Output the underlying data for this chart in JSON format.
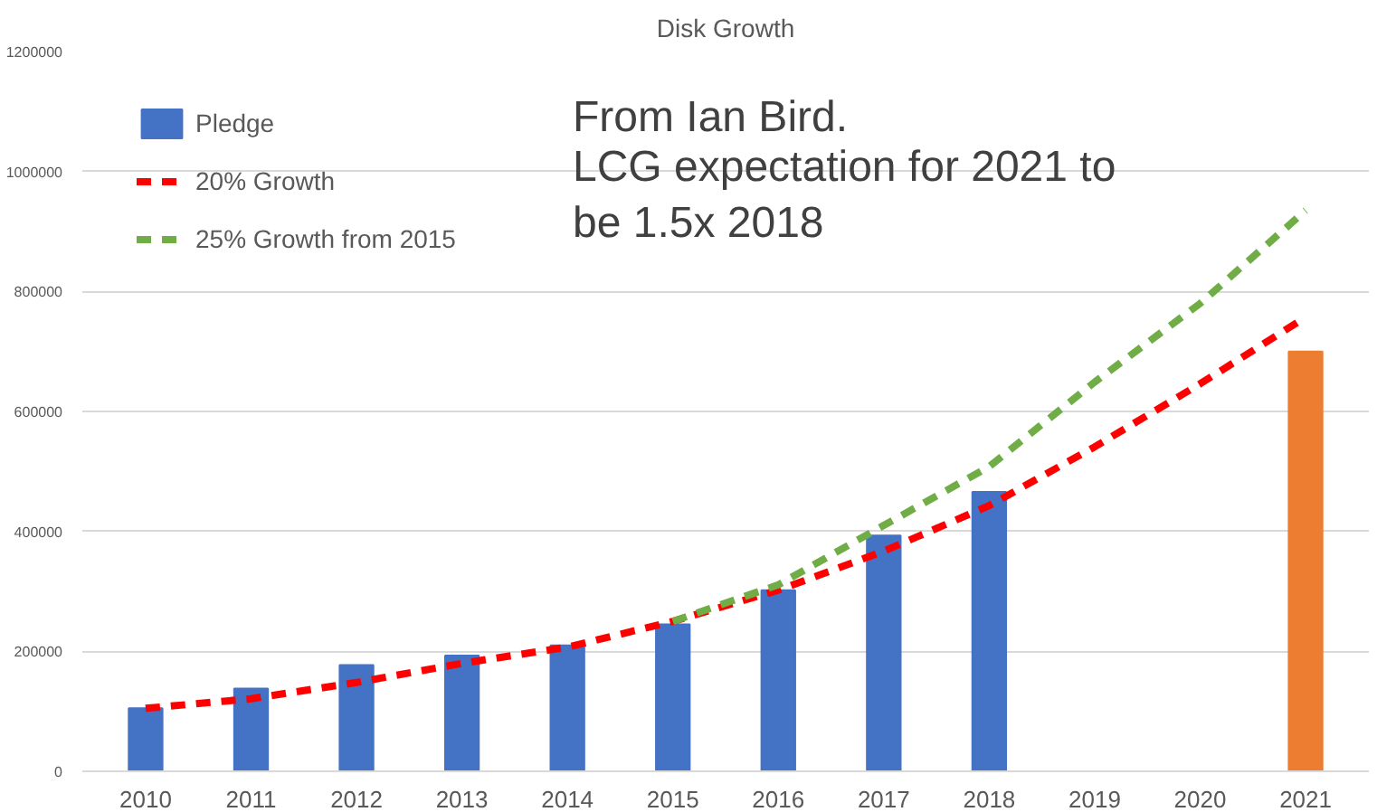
{
  "chart_data": {
    "type": "bar",
    "title": "Disk Growth",
    "categories": [
      "2010",
      "2011",
      "2012",
      "2013",
      "2014",
      "2015",
      "2016",
      "2017",
      "2018",
      "2019",
      "2020",
      "2021"
    ],
    "series": [
      {
        "name": "Pledge",
        "color": "#4472c4",
        "values": [
          105000,
          138000,
          177000,
          193000,
          210000,
          245000,
          302000,
          393000,
          466000,
          null,
          null,
          null
        ]
      },
      {
        "color": "#ed7d31",
        "values": [
          null,
          null,
          null,
          null,
          null,
          null,
          null,
          null,
          null,
          null,
          null,
          700000
        ]
      },
      {
        "name": "20% Growth",
        "type": "line",
        "line_style": "dashed",
        "color": "#ff0000",
        "values": [
          105000,
          121000,
          148000,
          180000,
          207000,
          250000,
          302000,
          367000,
          443000,
          541000,
          646000,
          757000
        ]
      },
      {
        "name": "25% Growth from 2015",
        "type": "line",
        "line_style": "dashed",
        "color": "#70ad47",
        "values": [
          null,
          null,
          null,
          null,
          null,
          250000,
          311000,
          410000,
          508000,
          649000,
          780000,
          935000
        ]
      }
    ],
    "ylim": [
      0,
      1200000
    ],
    "yticks": [
      0,
      200000,
      400000,
      600000,
      800000,
      1000000,
      1200000
    ],
    "grid": "y",
    "legend": "top left",
    "annotations": [
      "From Ian Bird.",
      "LCG expectation for 2021 to be 1.5x 2018"
    ]
  }
}
